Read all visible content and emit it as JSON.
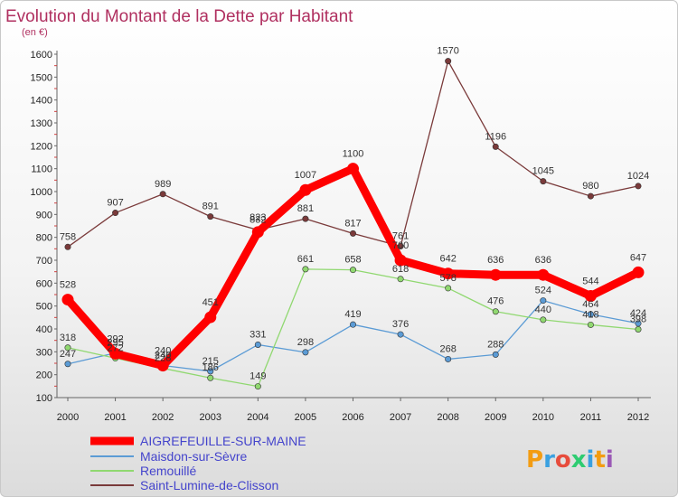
{
  "chart_data": {
    "type": "line",
    "title": "Evolution du Montant de la Dette par Habitant",
    "subtitle": "(en €)",
    "xlabel": "",
    "ylabel": "",
    "x": [
      "2000",
      "2001",
      "2002",
      "2003",
      "2004",
      "2005",
      "2006",
      "2007",
      "2008",
      "2009",
      "2010",
      "2011",
      "2012"
    ],
    "ylim": [
      100,
      1600
    ],
    "yticks": [
      100,
      200,
      300,
      400,
      500,
      600,
      700,
      800,
      900,
      1000,
      1100,
      1200,
      1300,
      1400,
      1500,
      1600
    ],
    "grid": false,
    "legend_position": "bottom-left",
    "series": [
      {
        "name": "AIGREFEUILLE-SUR-MAINE",
        "color": "#ff0000",
        "emphasis": true,
        "values": [
          528,
          292,
          240,
          451,
          823,
          1007,
          1100,
          700,
          642,
          636,
          636,
          544,
          647
        ]
      },
      {
        "name": "Maisdon-sur-Sèvre",
        "color": "#5b9bd5",
        "emphasis": false,
        "values": [
          247,
          295,
          240,
          215,
          331,
          298,
          419,
          376,
          268,
          288,
          524,
          464,
          424
        ]
      },
      {
        "name": "Remouillé",
        "color": "#90d870",
        "emphasis": false,
        "values": [
          318,
          272,
          228,
          186,
          149,
          661,
          658,
          618,
          578,
          476,
          440,
          418,
          398
        ]
      },
      {
        "name": "Saint-Lumine-de-Clisson",
        "color": "#7a3a3a",
        "emphasis": false,
        "values": [
          758,
          907,
          989,
          891,
          832,
          881,
          817,
          761,
          1570,
          1196,
          1045,
          980,
          1024
        ]
      }
    ]
  },
  "branding": {
    "logo_text": "Proxiti"
  }
}
